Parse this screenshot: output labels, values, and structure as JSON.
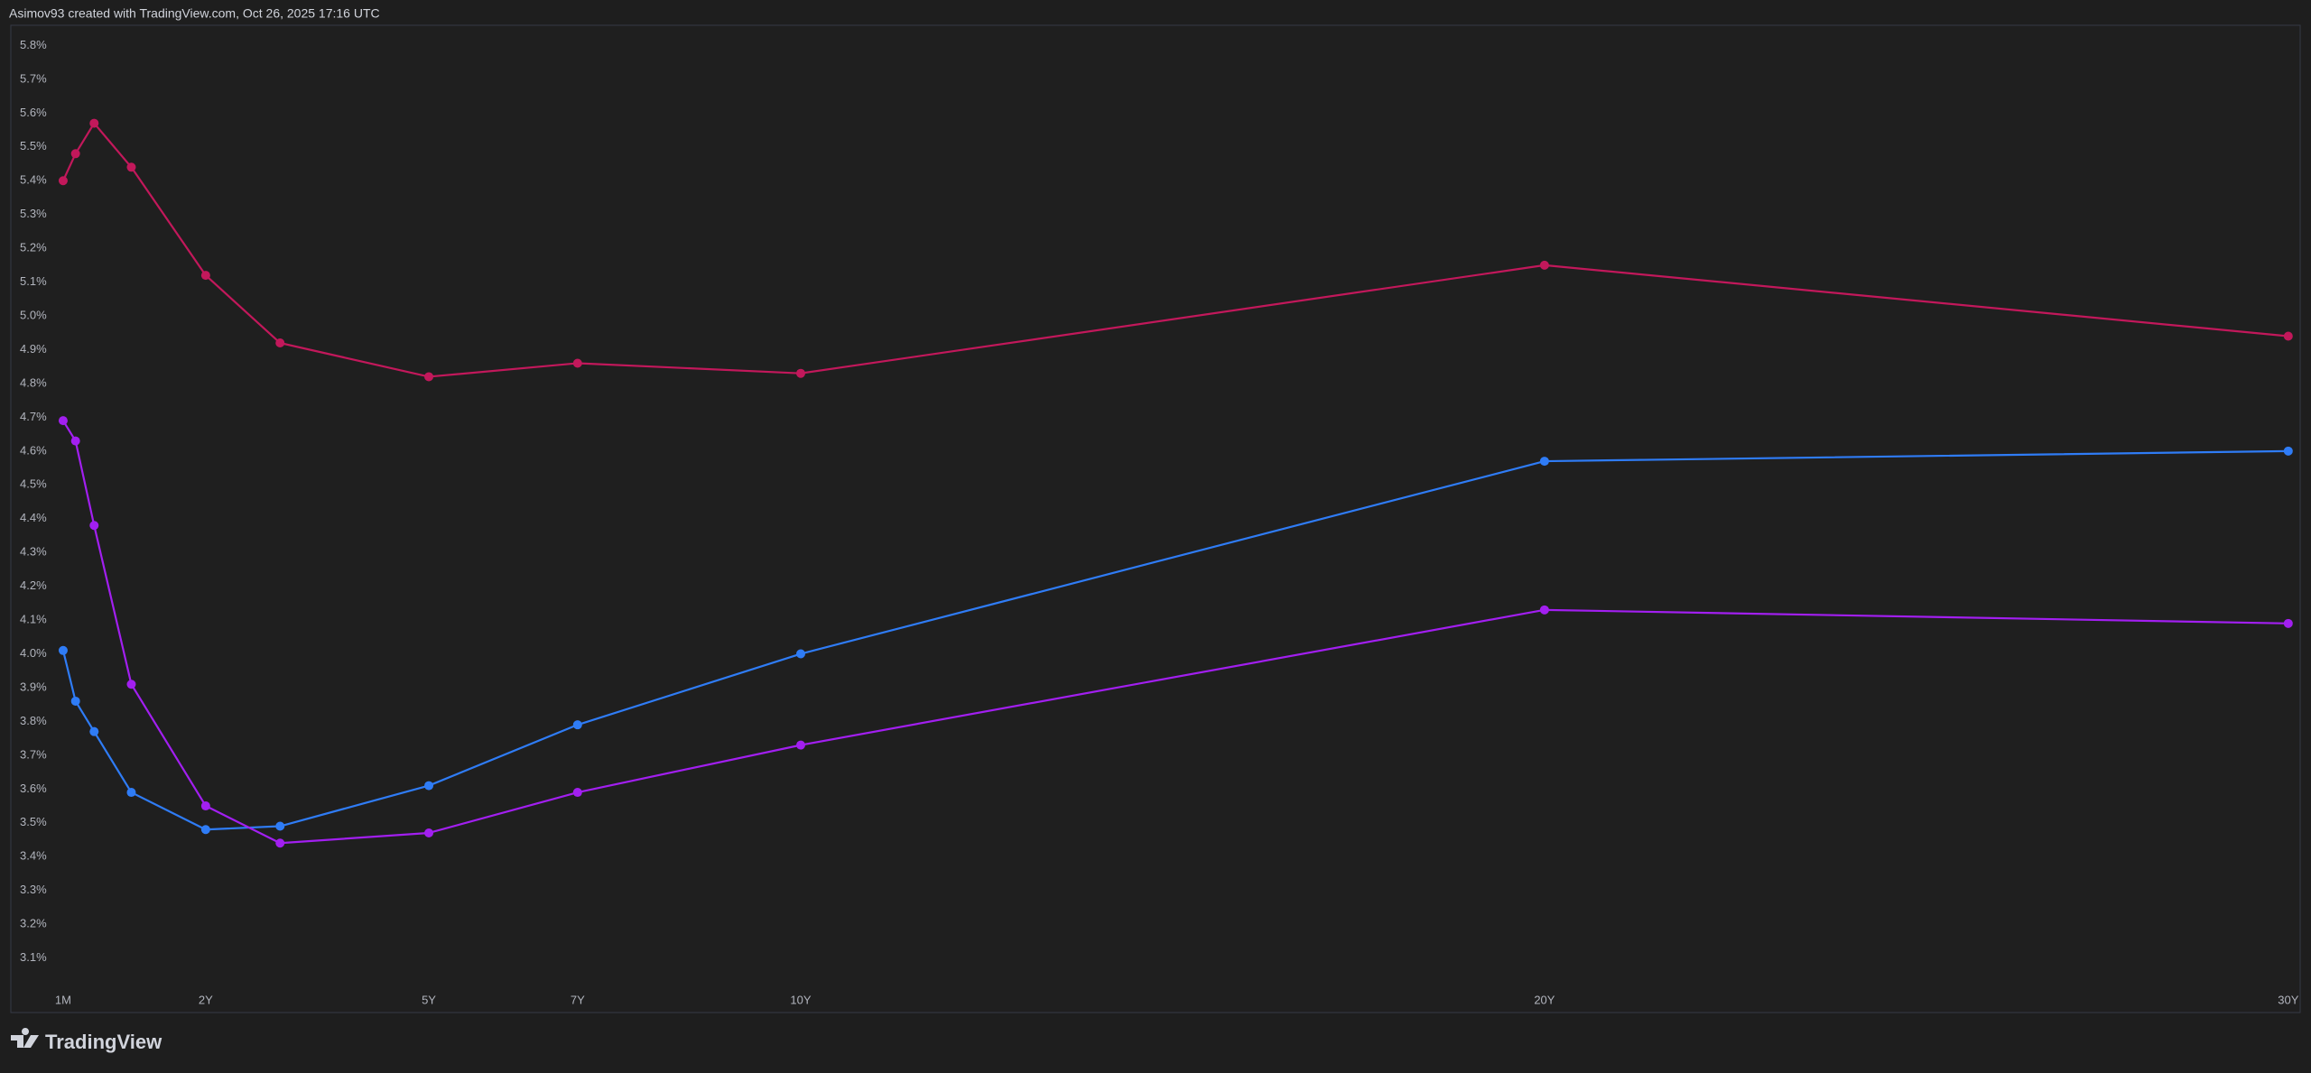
{
  "header": {
    "text": "Asimov93 created with TradingView.com, Oct 26, 2025 17:16 UTC"
  },
  "footer": {
    "brand": "TradingView"
  },
  "chart_data": {
    "type": "line",
    "x": [
      0.0833,
      0.25,
      0.5,
      1,
      2,
      3,
      5,
      7,
      10,
      20,
      30
    ],
    "series": [
      {
        "color": "#c2185b",
        "values": [
          5.4,
          5.48,
          5.57,
          5.44,
          5.12,
          4.92,
          4.82,
          4.86,
          4.83,
          5.15,
          4.94
        ]
      },
      {
        "color": "#2f7cf6",
        "values": [
          4.01,
          3.86,
          3.77,
          3.59,
          3.48,
          3.49,
          3.61,
          3.79,
          4.0,
          4.57,
          4.6
        ]
      },
      {
        "color": "#a21ff0",
        "values": [
          4.69,
          4.63,
          4.38,
          3.91,
          3.55,
          3.44,
          3.47,
          3.59,
          3.73,
          4.13,
          4.09
        ]
      }
    ],
    "xlim": [
      -0.62,
      30.16
    ],
    "xticks": [
      {
        "value": 0.0833,
        "label": "1M"
      },
      {
        "value": 2,
        "label": "2Y"
      },
      {
        "value": 5,
        "label": "5Y"
      },
      {
        "value": 7,
        "label": "7Y"
      },
      {
        "value": 10,
        "label": "10Y"
      },
      {
        "value": 20,
        "label": "20Y"
      },
      {
        "value": 30,
        "label": "30Y"
      }
    ],
    "ylim": [
      3.0,
      5.86
    ],
    "yticks": [
      {
        "value": 3.1,
        "label": "3.1%"
      },
      {
        "value": 3.2,
        "label": "3.2%"
      },
      {
        "value": 3.3,
        "label": "3.3%"
      },
      {
        "value": 3.4,
        "label": "3.4%"
      },
      {
        "value": 3.5,
        "label": "3.5%"
      },
      {
        "value": 3.6,
        "label": "3.6%"
      },
      {
        "value": 3.7,
        "label": "3.7%"
      },
      {
        "value": 3.8,
        "label": "3.8%"
      },
      {
        "value": 3.9,
        "label": "3.9%"
      },
      {
        "value": 4.0,
        "label": "4.0%"
      },
      {
        "value": 4.1,
        "label": "4.1%"
      },
      {
        "value": 4.2,
        "label": "4.2%"
      },
      {
        "value": 4.3,
        "label": "4.3%"
      },
      {
        "value": 4.4,
        "label": "4.4%"
      },
      {
        "value": 4.5,
        "label": "4.5%"
      },
      {
        "value": 4.6,
        "label": "4.6%"
      },
      {
        "value": 4.7,
        "label": "4.7%"
      },
      {
        "value": 4.8,
        "label": "4.8%"
      },
      {
        "value": 4.9,
        "label": "4.9%"
      },
      {
        "value": 5.0,
        "label": "5.0%"
      },
      {
        "value": 5.1,
        "label": "5.1%"
      },
      {
        "value": 5.2,
        "label": "5.2%"
      },
      {
        "value": 5.3,
        "label": "5.3%"
      },
      {
        "value": 5.4,
        "label": "5.4%"
      },
      {
        "value": 5.5,
        "label": "5.5%"
      },
      {
        "value": 5.6,
        "label": "5.6%"
      },
      {
        "value": 5.7,
        "label": "5.7%"
      },
      {
        "value": 5.8,
        "label": "5.8%"
      }
    ],
    "grid": false
  }
}
